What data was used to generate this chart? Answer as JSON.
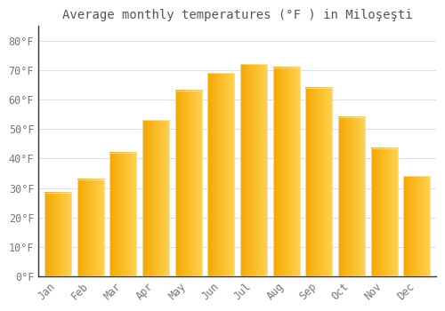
{
  "title": "Average monthly temperatures (°F ) in Miloşeşti",
  "months": [
    "Jan",
    "Feb",
    "Mar",
    "Apr",
    "May",
    "Jun",
    "Jul",
    "Aug",
    "Sep",
    "Oct",
    "Nov",
    "Dec"
  ],
  "values": [
    28.5,
    33,
    42,
    53,
    63,
    69,
    72,
    71,
    64,
    54,
    43.5,
    34
  ],
  "bar_color_left": "#F5A800",
  "bar_color_right": "#FFD966",
  "bar_edge_color": "#E8E8E8",
  "background_color": "#FFFFFF",
  "grid_color": "#DDDDDD",
  "text_color": "#555555",
  "tick_label_color": "#777777",
  "spine_color": "#333333",
  "ylim": [
    0,
    85
  ],
  "yticks": [
    0,
    10,
    20,
    30,
    40,
    50,
    60,
    70,
    80
  ],
  "ytick_labels": [
    "0°F",
    "10°F",
    "20°F",
    "30°F",
    "40°F",
    "50°F",
    "60°F",
    "70°F",
    "80°F"
  ],
  "title_fontsize": 10,
  "tick_fontsize": 8.5,
  "font_family": "monospace"
}
